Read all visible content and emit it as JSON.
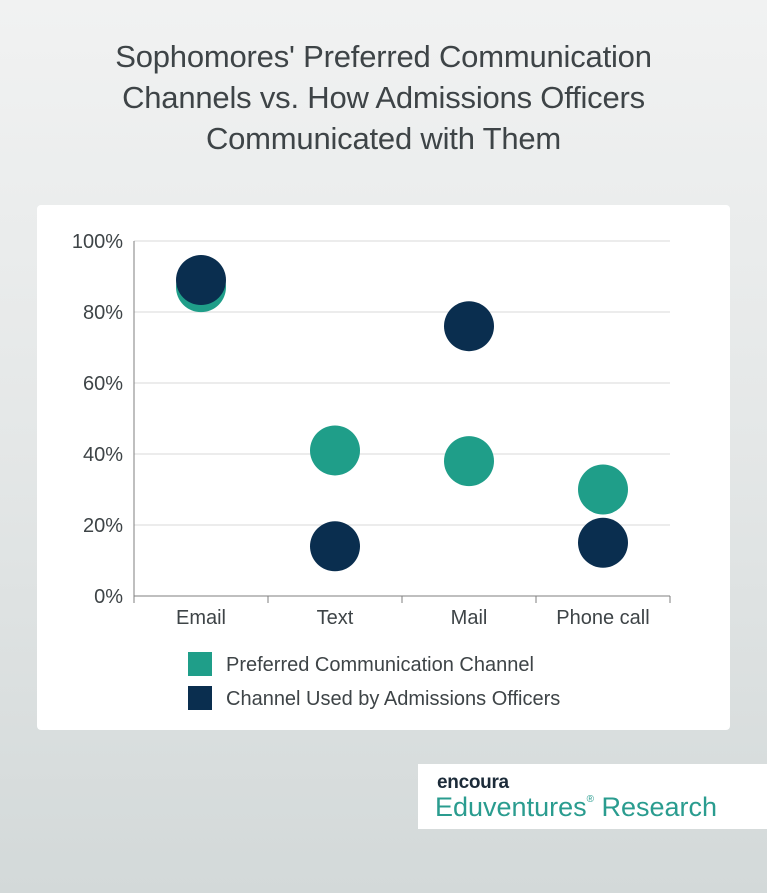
{
  "title_lines": [
    "Sophomores' Preferred Communication",
    "Channels vs. How Admissions Officers",
    "Communicated with Them"
  ],
  "chart_data": {
    "type": "scatter",
    "categories": [
      "Email",
      "Text",
      "Mail",
      "Phone call"
    ],
    "series": [
      {
        "name": "Preferred Communication Channel",
        "color": "#1f9e89",
        "values": [
          87,
          41,
          38,
          30
        ]
      },
      {
        "name": "Channel Used by Admissions Officers",
        "color": "#0a2e4f",
        "values": [
          89,
          14,
          76,
          15
        ]
      }
    ],
    "yticks": [
      "0%",
      "20%",
      "40%",
      "60%",
      "80%",
      "100%"
    ],
    "ylim": [
      0,
      100
    ],
    "grid": true,
    "legend": "bottom"
  },
  "brand": {
    "logo_text": "encoura",
    "line1": "Eduventures",
    "registered_mark": "®",
    "line2": "Research"
  }
}
